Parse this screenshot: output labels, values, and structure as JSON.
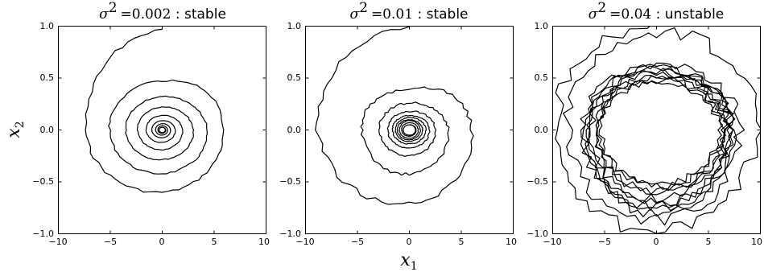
{
  "chart_data": [
    {
      "type": "line",
      "title": {
        "sym": "σ",
        "sup": "2",
        "eq": "=0.002",
        "suffix": " : stable"
      },
      "xlim": [
        -10,
        10
      ],
      "ylim": [
        -1.0,
        1.0
      ],
      "xticks": [
        "−10",
        "−5",
        "0",
        "5",
        "10"
      ],
      "yticks": [
        "1.0",
        "0.5",
        "0.0",
        "−0.5",
        "−1.0"
      ],
      "grid": false,
      "series": [
        {
          "shape": "inward-spiral",
          "turns": [
            {
              "rx_left": 8.0,
              "rx_right": 6.6,
              "ry_top": 0.97,
              "ry_bottom": 0.7
            },
            {
              "rx_left": 5.5,
              "rx_right": 5.7,
              "ry_top": 0.47,
              "ry_bottom": 0.5
            },
            {
              "rx_left": 3.8,
              "rx_right": 3.9,
              "ry_top": 0.32,
              "ry_bottom": 0.34
            },
            {
              "rx_left": 2.6,
              "rx_right": 2.7,
              "ry_top": 0.22,
              "ry_bottom": 0.23
            },
            {
              "rx_left": 1.7,
              "rx_right": 1.7,
              "ry_top": 0.14,
              "ry_bottom": 0.15
            },
            {
              "rx_left": 1.1,
              "rx_right": 1.1,
              "ry_top": 0.09,
              "ry_bottom": 0.09
            },
            {
              "rx_left": 0.7,
              "rx_right": 0.7,
              "ry_top": 0.06,
              "ry_bottom": 0.06
            },
            {
              "rx_left": 0.45,
              "rx_right": 0.45,
              "ry_top": 0.04,
              "ry_bottom": 0.04
            },
            {
              "rx_left": 0.3,
              "rx_right": 0.3,
              "ry_top": 0.025,
              "ry_bottom": 0.025
            }
          ]
        }
      ]
    },
    {
      "type": "line",
      "title": {
        "sym": "σ",
        "sup": "2",
        "eq": "=0.01",
        "suffix": " : stable"
      },
      "xlim": [
        -10,
        10
      ],
      "ylim": [
        -1.0,
        1.0
      ],
      "xticks": [
        "−10",
        "−5",
        "0",
        "5",
        "10"
      ],
      "yticks": [
        "1.0",
        "0.5",
        "0.0",
        "−0.5",
        "−1.0"
      ],
      "grid": false,
      "series": [
        {
          "shape": "inward-spiral",
          "turns": [
            {
              "rx_left": 10.0,
              "rx_right": 7.8,
              "ry_top": 0.98,
              "ry_bottom": 0.88
            },
            {
              "rx_left": 5.1,
              "rx_right": 5.4,
              "ry_top": 0.4,
              "ry_bottom": 0.55
            },
            {
              "rx_left": 3.1,
              "rx_right": 3.2,
              "ry_top": 0.26,
              "ry_bottom": 0.3
            },
            {
              "rx_left": 2.2,
              "rx_right": 2.3,
              "ry_top": 0.18,
              "ry_bottom": 0.2
            },
            {
              "rx_left": 1.7,
              "rx_right": 1.8,
              "ry_top": 0.14,
              "ry_bottom": 0.15
            },
            {
              "rx_left": 1.4,
              "rx_right": 1.5,
              "ry_top": 0.12,
              "ry_bottom": 0.12
            },
            {
              "rx_left": 1.2,
              "rx_right": 1.2,
              "ry_top": 0.1,
              "ry_bottom": 0.1
            },
            {
              "rx_left": 1.0,
              "rx_right": 1.0,
              "ry_top": 0.09,
              "ry_bottom": 0.09
            },
            {
              "rx_left": 0.8,
              "rx_right": 0.8,
              "ry_top": 0.07,
              "ry_bottom": 0.07
            },
            {
              "rx_left": 0.6,
              "rx_right": 0.6,
              "ry_top": 0.05,
              "ry_bottom": 0.05
            }
          ]
        }
      ]
    },
    {
      "type": "line",
      "title": {
        "sym": "σ",
        "sup": "2",
        "eq": "=0.04",
        "suffix": " : unstable"
      },
      "xlim": [
        -10,
        10
      ],
      "ylim": [
        -1.0,
        1.0
      ],
      "xticks": [
        "−10",
        "−5",
        "0",
        "5",
        "10"
      ],
      "yticks": [
        "1.0",
        "0.5",
        "0.0",
        "−0.5",
        "−1.0"
      ],
      "grid": false,
      "series": [
        {
          "shape": "irregular-limit-cycle",
          "turns": [
            {
              "rx_left": 10.0,
              "rx_right": 9.8,
              "ry_top": 1.0,
              "ry_bottom": 1.0
            },
            {
              "rx_left": 9.0,
              "rx_right": 9.5,
              "ry_top": 0.95,
              "ry_bottom": 0.95
            },
            {
              "rx_left": 7.2,
              "rx_right": 7.4,
              "ry_top": 0.62,
              "ry_bottom": 0.78
            },
            {
              "rx_left": 6.5,
              "rx_right": 7.1,
              "ry_top": 0.55,
              "ry_bottom": 0.7
            },
            {
              "rx_left": 6.0,
              "rx_right": 6.8,
              "ry_top": 0.52,
              "ry_bottom": 0.62
            },
            {
              "rx_left": 5.6,
              "rx_right": 6.4,
              "ry_top": 0.48,
              "ry_bottom": 0.55
            },
            {
              "rx_left": 5.2,
              "rx_right": 6.2,
              "ry_top": 0.46,
              "ry_bottom": 0.5
            },
            {
              "rx_left": 5.5,
              "rx_right": 6.0,
              "ry_top": 0.5,
              "ry_bottom": 0.58
            },
            {
              "rx_left": 6.2,
              "rx_right": 6.9,
              "ry_top": 0.56,
              "ry_bottom": 0.66
            },
            {
              "rx_left": 6.8,
              "rx_right": 7.2,
              "ry_top": 0.6,
              "ry_bottom": 0.74
            },
            {
              "rx_left": 7.0,
              "rx_right": 7.3,
              "ry_top": 0.58,
              "ry_bottom": 0.8
            }
          ]
        }
      ]
    }
  ],
  "axes_labels": {
    "xlabel": {
      "sym": "x",
      "sub": "1"
    },
    "ylabel": {
      "sym": "x",
      "sub": "2"
    }
  }
}
